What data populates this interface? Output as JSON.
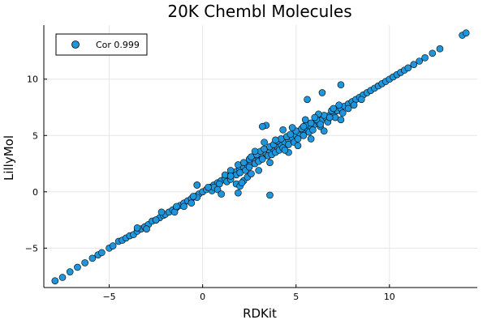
{
  "chart_data": {
    "type": "scatter",
    "title": "20K Chembl Molecules",
    "xlabel": "RDKit",
    "ylabel": "LillyMol",
    "xlim": [
      -8.5,
      14.7
    ],
    "ylim": [
      -8.5,
      14.8
    ],
    "xticks": [
      -5,
      0,
      5,
      10
    ],
    "yticks": [
      -5,
      0,
      5,
      10
    ],
    "grid": true,
    "legend_position": "top-left",
    "series": [
      {
        "name": "Cor 0.999",
        "color": "#1f96dc",
        "points": [
          [
            -7.9,
            -7.9
          ],
          [
            -7.5,
            -7.6
          ],
          [
            -7.1,
            -7.1
          ],
          [
            -6.7,
            -6.7
          ],
          [
            -6.3,
            -6.3
          ],
          [
            -5.9,
            -5.9
          ],
          [
            -5.6,
            -5.6
          ],
          [
            -5.4,
            -5.4
          ],
          [
            -5.0,
            -5.0
          ],
          [
            -4.8,
            -4.8
          ],
          [
            -4.5,
            -4.4
          ],
          [
            -4.3,
            -4.3
          ],
          [
            -4.1,
            -4.1
          ],
          [
            -3.9,
            -3.9
          ],
          [
            -3.7,
            -3.8
          ],
          [
            -3.5,
            -3.5
          ],
          [
            -3.3,
            -3.3
          ],
          [
            -3.1,
            -3.1
          ],
          [
            -2.9,
            -2.9
          ],
          [
            -2.7,
            -2.6
          ],
          [
            -2.5,
            -2.5
          ],
          [
            -2.3,
            -2.3
          ],
          [
            -2.1,
            -2.1
          ],
          [
            -2.0,
            -2.0
          ],
          [
            -1.8,
            -1.8
          ],
          [
            -1.6,
            -1.6
          ],
          [
            -1.4,
            -1.4
          ],
          [
            -1.2,
            -1.2
          ],
          [
            -1.0,
            -1.0
          ],
          [
            -0.8,
            -0.8
          ],
          [
            -0.6,
            -0.6
          ],
          [
            -0.4,
            -0.4
          ],
          [
            -0.2,
            -0.2
          ],
          [
            0.0,
            0.0
          ],
          [
            0.2,
            0.2
          ],
          [
            0.4,
            0.4
          ],
          [
            0.6,
            0.6
          ],
          [
            0.8,
            0.8
          ],
          [
            1.0,
            1.0
          ],
          [
            1.2,
            1.2
          ],
          [
            1.4,
            1.4
          ],
          [
            1.6,
            1.6
          ],
          [
            1.8,
            1.8
          ],
          [
            2.0,
            2.0
          ],
          [
            2.2,
            2.2
          ],
          [
            2.4,
            2.4
          ],
          [
            2.6,
            2.6
          ],
          [
            2.8,
            2.8
          ],
          [
            3.0,
            3.0
          ],
          [
            3.2,
            3.2
          ],
          [
            3.4,
            3.4
          ],
          [
            3.6,
            3.6
          ],
          [
            3.8,
            3.8
          ],
          [
            4.0,
            4.0
          ],
          [
            4.2,
            4.2
          ],
          [
            4.4,
            4.4
          ],
          [
            4.6,
            4.6
          ],
          [
            4.8,
            4.8
          ],
          [
            5.0,
            5.0
          ],
          [
            5.2,
            5.2
          ],
          [
            5.4,
            5.4
          ],
          [
            5.6,
            5.6
          ],
          [
            5.8,
            5.8
          ],
          [
            6.0,
            6.0
          ],
          [
            6.2,
            6.2
          ],
          [
            6.4,
            6.4
          ],
          [
            6.6,
            6.6
          ],
          [
            6.8,
            6.8
          ],
          [
            7.0,
            7.0
          ],
          [
            7.2,
            7.2
          ],
          [
            7.4,
            7.4
          ],
          [
            7.6,
            7.6
          ],
          [
            7.8,
            7.8
          ],
          [
            8.0,
            8.0
          ],
          [
            8.2,
            8.2
          ],
          [
            8.4,
            8.4
          ],
          [
            8.6,
            8.6
          ],
          [
            8.8,
            8.8
          ],
          [
            9.0,
            9.0
          ],
          [
            9.2,
            9.2
          ],
          [
            9.4,
            9.4
          ],
          [
            9.6,
            9.6
          ],
          [
            9.8,
            9.8
          ],
          [
            10.0,
            10.0
          ],
          [
            10.2,
            10.2
          ],
          [
            10.4,
            10.4
          ],
          [
            10.6,
            10.6
          ],
          [
            10.8,
            10.8
          ],
          [
            11.0,
            11.0
          ],
          [
            11.3,
            11.3
          ],
          [
            11.6,
            11.6
          ],
          [
            11.9,
            11.9
          ],
          [
            12.3,
            12.3
          ],
          [
            12.7,
            12.7
          ],
          [
            13.9,
            13.9
          ],
          [
            14.1,
            14.1
          ],
          [
            -3.5,
            -3.2
          ],
          [
            -3.0,
            -3.3
          ],
          [
            -2.2,
            -1.8
          ],
          [
            -1.5,
            -1.8
          ],
          [
            -1.0,
            -1.3
          ],
          [
            -0.6,
            -1.0
          ],
          [
            -0.3,
            -0.5
          ],
          [
            -0.3,
            0.6
          ],
          [
            0.5,
            0.1
          ],
          [
            0.6,
            0.4
          ],
          [
            0.9,
            0.7
          ],
          [
            1.2,
            1.5
          ],
          [
            1.3,
            0.9
          ],
          [
            1.5,
            1.1
          ],
          [
            1.5,
            1.9
          ],
          [
            1.8,
            1.5
          ],
          [
            1.9,
            2.4
          ],
          [
            2.0,
            1.7
          ],
          [
            2.2,
            2.6
          ],
          [
            2.3,
            1.9
          ],
          [
            2.5,
            2.9
          ],
          [
            2.5,
            2.2
          ],
          [
            2.6,
            3.1
          ],
          [
            2.8,
            2.5
          ],
          [
            2.9,
            3.3
          ],
          [
            3.0,
            2.7
          ],
          [
            3.1,
            3.6
          ],
          [
            3.2,
            2.9
          ],
          [
            3.3,
            3.8
          ],
          [
            3.5,
            3.2
          ],
          [
            3.6,
            4.0
          ],
          [
            3.7,
            3.3
          ],
          [
            3.8,
            4.2
          ],
          [
            3.9,
            3.5
          ],
          [
            4.0,
            4.5
          ],
          [
            4.1,
            3.7
          ],
          [
            4.2,
            4.7
          ],
          [
            4.3,
            3.9
          ],
          [
            4.5,
            4.9
          ],
          [
            4.6,
            4.2
          ],
          [
            4.7,
            5.1
          ],
          [
            4.9,
            4.4
          ],
          [
            5.0,
            5.4
          ],
          [
            5.1,
            4.7
          ],
          [
            5.3,
            5.6
          ],
          [
            5.4,
            5.0
          ],
          [
            5.5,
            5.9
          ],
          [
            5.7,
            5.3
          ],
          [
            5.8,
            6.1
          ],
          [
            5.9,
            5.5
          ],
          [
            6.1,
            6.4
          ],
          [
            6.3,
            5.8
          ],
          [
            6.5,
            6.8
          ],
          [
            6.7,
            6.2
          ],
          [
            6.9,
            7.2
          ],
          [
            7.1,
            6.6
          ],
          [
            7.3,
            7.7
          ],
          [
            7.5,
            7.0
          ],
          [
            7.8,
            7.4
          ],
          [
            8.1,
            7.7
          ],
          [
            8.5,
            8.2
          ],
          [
            0.8,
            0.2
          ],
          [
            1.0,
            -0.2
          ],
          [
            1.5,
            1.4
          ],
          [
            1.8,
            0.7
          ],
          [
            2.0,
            0.5
          ],
          [
            2.2,
            1.0
          ],
          [
            2.4,
            1.3
          ],
          [
            2.6,
            1.6
          ],
          [
            1.9,
            -0.1
          ],
          [
            3.0,
            1.9
          ],
          [
            2.8,
            3.6
          ],
          [
            3.3,
            4.4
          ],
          [
            3.6,
            2.6
          ],
          [
            3.9,
            4.6
          ],
          [
            4.3,
            5.5
          ],
          [
            4.6,
            3.5
          ],
          [
            4.8,
            5.7
          ],
          [
            5.1,
            4.1
          ],
          [
            5.5,
            6.4
          ],
          [
            5.8,
            4.7
          ],
          [
            6.2,
            6.9
          ],
          [
            6.5,
            5.4
          ],
          [
            6.0,
            6.6
          ],
          [
            6.3,
            6.0
          ],
          [
            7.0,
            7.4
          ],
          [
            7.4,
            6.4
          ],
          [
            3.6,
            -0.3
          ],
          [
            5.6,
            8.2
          ],
          [
            6.4,
            8.8
          ],
          [
            7.4,
            9.5
          ],
          [
            3.4,
            5.9
          ],
          [
            5.4,
            5.8
          ],
          [
            3.2,
            5.8
          ],
          [
            -0.3,
            0.6
          ],
          [
            -2.5,
            -2.5
          ],
          [
            -1.4,
            -1.3
          ],
          [
            -0.5,
            -0.4
          ],
          [
            0.3,
            0.4
          ],
          [
            2.1,
            0.8
          ],
          [
            4.4,
            3.7
          ],
          [
            6.8,
            6.6
          ]
        ]
      }
    ]
  }
}
